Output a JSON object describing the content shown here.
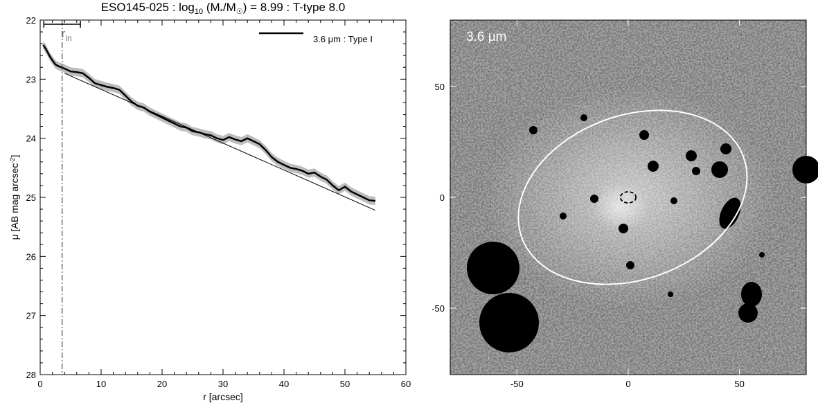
{
  "chart_data": [
    {
      "type": "line",
      "title": {
        "pre": "ESO145-025 : log",
        "sub10": "10",
        "mid": " (M",
        "star": "*",
        "slash": "/M",
        "sun": "☉",
        "post": ") = 8.99 : T-type 8.0"
      },
      "xlabel": "r [arcsec]",
      "ylabel": {
        "pre": "μ [AB mag arcsec",
        "sup": "-2",
        "post": "]"
      },
      "xlim": [
        0,
        60
      ],
      "ylim": [
        28,
        22
      ],
      "xticks": [
        "0",
        "10",
        "20",
        "30",
        "40",
        "50",
        "60"
      ],
      "yticks": [
        "22",
        "23",
        "24",
        "25",
        "26",
        "27",
        "28"
      ],
      "xtick_values": [
        0,
        10,
        20,
        30,
        40,
        50,
        60
      ],
      "ytick_values": [
        22,
        23,
        24,
        25,
        26,
        27,
        28
      ],
      "grid": false,
      "legend": {
        "position": "top-right",
        "label": "3.6 μm : Type I"
      },
      "annotation_rin": {
        "label": "r",
        "sub": "in",
        "x": 3.6,
        "bar_x": [
          0.6,
          6.6
        ]
      },
      "series": [
        {
          "name": "3.6 μm : Type I",
          "color": "#000000",
          "x": [
            0.5,
            1.0,
            1.5,
            2.0,
            2.5,
            3.0,
            3.5,
            4.0,
            5.0,
            6.0,
            7.0,
            8.0,
            9.0,
            10.0,
            11.0,
            12.0,
            13.0,
            14.0,
            15.0,
            16.0,
            17.0,
            18.0,
            19.0,
            20.0,
            21.0,
            22.0,
            23.0,
            24.0,
            25.0,
            26.0,
            27.0,
            28.0,
            29.0,
            30.0,
            31.0,
            32.0,
            33.0,
            34.0,
            35.0,
            36.0,
            37.0,
            38.0,
            39.0,
            40.0,
            41.0,
            42.0,
            43.0,
            44.0,
            45.0,
            46.0,
            47.0,
            48.0,
            49.0,
            50.0,
            51.0,
            52.0,
            53.0,
            54.0,
            55.0
          ],
          "y": [
            22.42,
            22.5,
            22.6,
            22.68,
            22.75,
            22.78,
            22.8,
            22.82,
            22.87,
            22.88,
            22.9,
            22.98,
            23.07,
            23.1,
            23.13,
            23.15,
            23.18,
            23.28,
            23.38,
            23.45,
            23.48,
            23.55,
            23.6,
            23.65,
            23.7,
            23.75,
            23.8,
            23.82,
            23.88,
            23.9,
            23.93,
            23.95,
            24.0,
            24.03,
            23.98,
            24.02,
            24.05,
            24.0,
            24.05,
            24.1,
            24.2,
            24.32,
            24.4,
            24.45,
            24.5,
            24.52,
            24.55,
            24.6,
            24.58,
            24.65,
            24.7,
            24.8,
            24.88,
            24.82,
            24.9,
            24.95,
            25.0,
            25.05,
            25.06
          ],
          "uncertainty": 0.07
        },
        {
          "name": "",
          "color": "#000000",
          "x": [
            4.0,
            55.0
          ],
          "y": [
            22.9,
            25.22
          ]
        }
      ]
    },
    {
      "type": "heatmap",
      "label": "3.6 μm",
      "xlim": [
        -80,
        80
      ],
      "ylim": [
        -80,
        80
      ],
      "xticks": [
        "-50",
        "0",
        "50"
      ],
      "yticks": [
        "50",
        "0",
        "-50"
      ],
      "xtick_values": [
        -50,
        0,
        50
      ],
      "ytick_values": [
        50,
        0,
        -50
      ],
      "outer_ellipse": {
        "cx": 2,
        "cy": 0,
        "rx": 53,
        "ry": 37,
        "angle_deg": 20,
        "color": "#ffffff"
      },
      "inner_ellipse": {
        "cx": 0,
        "cy": 0,
        "rx": 3.5,
        "ry": 2.5,
        "color": "#000000"
      }
    }
  ]
}
